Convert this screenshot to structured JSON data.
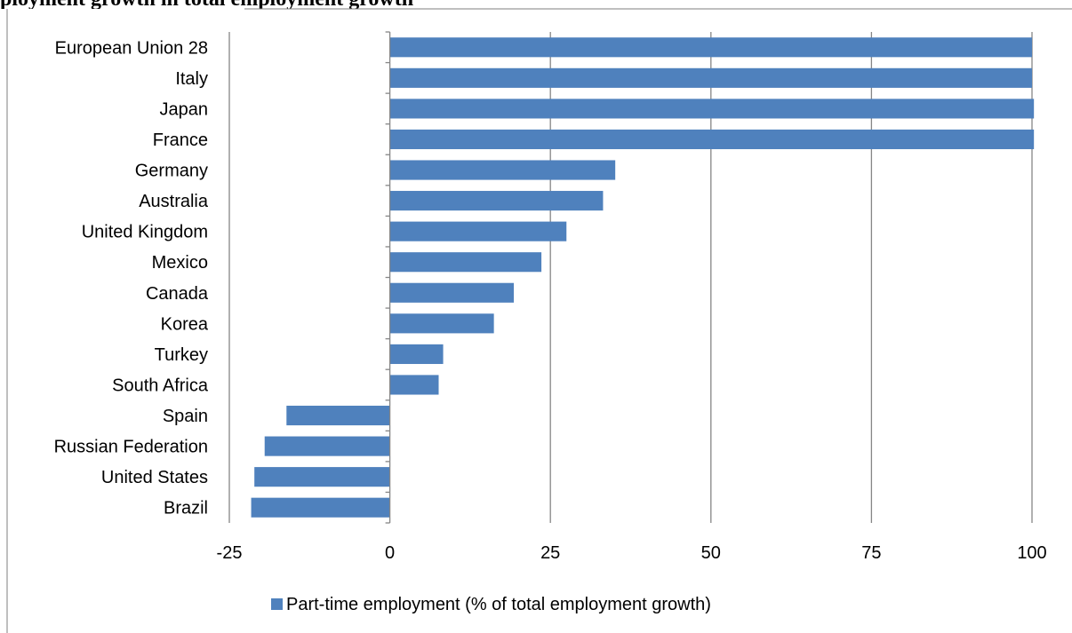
{
  "header": {
    "title_fragment": "ployment growth in total employment growth"
  },
  "chart_data": {
    "type": "bar",
    "orientation": "horizontal",
    "title": "",
    "xlabel": "",
    "ylabel": "",
    "xlim": [
      -25,
      100
    ],
    "xticks": [
      -25,
      0,
      25,
      50,
      75,
      100
    ],
    "xtick_labels": [
      "-25",
      "0",
      "25",
      "50",
      "75",
      "100"
    ],
    "grid": "vertical",
    "legend_position": "bottom",
    "bar_color": "#4F81BD",
    "categories": [
      "European Union 28",
      "Italy",
      "Japan",
      "France",
      "Germany",
      "Australia",
      "United Kingdom",
      "Mexico",
      "Canada",
      "Korea",
      "Turkey",
      "South Africa",
      "Spain",
      "Russian Federation",
      "United States",
      "Brazil"
    ],
    "series": [
      {
        "name": "Part-time employment (% of total employment growth)",
        "values": [
          100,
          100,
          100.3,
          100.3,
          35.1,
          33.2,
          27.5,
          23.6,
          19.3,
          16.2,
          8.3,
          7.6,
          -16.1,
          -19.5,
          -21.1,
          -21.6
        ]
      }
    ]
  }
}
